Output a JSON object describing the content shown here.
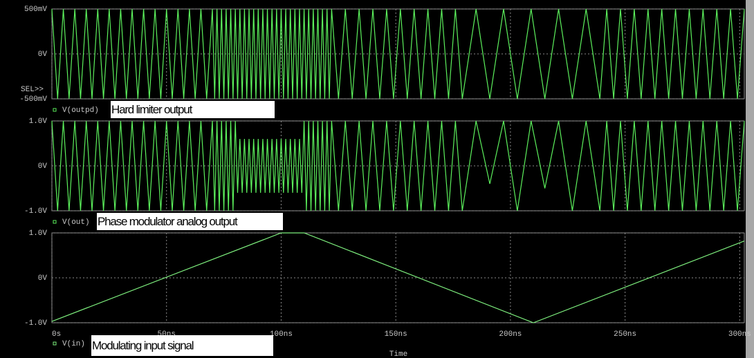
{
  "sel_label": "SEL>>",
  "chart_data": [
    {
      "type": "line",
      "annotation": "Hard limiter output",
      "xlim": [
        0,
        302
      ],
      "xticks": [
        0,
        50,
        100,
        150,
        200,
        250,
        300
      ],
      "ylim": [
        -0.5,
        0.5
      ],
      "yticks": [
        {
          "value": 0.5,
          "label": "500mV"
        },
        {
          "value": 0,
          "label": "0V"
        },
        {
          "value": -0.5,
          "label": "-500mV"
        }
      ],
      "series": [
        {
          "name": "V(outpd)",
          "color": "#5cf05c",
          "x": [
            0,
            2.5,
            5,
            7.5,
            10,
            12.5,
            15,
            17.5,
            20,
            22.5,
            25,
            27.5,
            30,
            32.5,
            35,
            37.5,
            40,
            42.5,
            45,
            47.5,
            50,
            52.5,
            55,
            57.5,
            60,
            62.5,
            65,
            67.5,
            70,
            71,
            72,
            73,
            74,
            75,
            76,
            77,
            78,
            79,
            80,
            81,
            82,
            83,
            84,
            85,
            86,
            87,
            88,
            89,
            90,
            91,
            92,
            93,
            94,
            95,
            96,
            97,
            98,
            99,
            100,
            101,
            102,
            103,
            104,
            105,
            106,
            107,
            108,
            109,
            110,
            111,
            112,
            113,
            114,
            115,
            116,
            117,
            118,
            119,
            120,
            121,
            122,
            125,
            128,
            131,
            134,
            137,
            140,
            143,
            146,
            149,
            152,
            155,
            158,
            161,
            164,
            167,
            170,
            173,
            176,
            179,
            185,
            191,
            197,
            203,
            209,
            215,
            221,
            227,
            233,
            239,
            242,
            245,
            248,
            251,
            254,
            257,
            260,
            263,
            266,
            269,
            272,
            275,
            278,
            281,
            284,
            287,
            290,
            293,
            296,
            299,
            302
          ],
          "values": [
            0.5,
            -0.5,
            0.5,
            -0.5,
            0.5,
            -0.5,
            0.5,
            -0.5,
            0.5,
            -0.5,
            0.5,
            -0.5,
            0.5,
            -0.5,
            0.5,
            -0.5,
            0.5,
            -0.5,
            0.5,
            -0.5,
            0.5,
            -0.5,
            0.5,
            -0.5,
            0.5,
            -0.5,
            0.5,
            -0.5,
            0.5,
            -0.5,
            0.5,
            -0.5,
            0.5,
            -0.5,
            0.5,
            -0.5,
            0.5,
            -0.5,
            0.5,
            -0.5,
            0.5,
            -0.5,
            0.5,
            -0.5,
            0.5,
            -0.5,
            0.5,
            -0.5,
            0.5,
            -0.5,
            0.5,
            -0.5,
            0.5,
            -0.5,
            0.5,
            -0.5,
            0.5,
            -0.5,
            0.5,
            -0.5,
            0.5,
            -0.5,
            0.5,
            -0.5,
            0.5,
            -0.5,
            0.5,
            -0.5,
            0.5,
            -0.5,
            0.5,
            -0.5,
            0.5,
            -0.5,
            0.5,
            -0.5,
            0.5,
            -0.5,
            0.5,
            -0.5,
            0.5,
            -0.5,
            0.5,
            -0.5,
            0.5,
            -0.5,
            0.5,
            -0.5,
            0.5,
            -0.5,
            0.5,
            -0.5,
            0.5,
            -0.5,
            0.5,
            -0.5,
            0.5,
            -0.5,
            0.5,
            -0.5,
            0.5,
            -0.5,
            0.5,
            -0.5,
            0.5,
            -0.5,
            0.5,
            -0.5,
            0.5,
            -0.5,
            0.5,
            -0.5,
            0.5,
            -0.5,
            0.5,
            -0.5,
            0.5,
            -0.5,
            0.5,
            -0.5,
            0.5,
            -0.5,
            0.5,
            -0.5,
            0.5,
            -0.5,
            0.5,
            -0.5,
            0.5,
            -0.5,
            0.5
          ]
        }
      ]
    },
    {
      "type": "line",
      "annotation": "Phase modulator analog output",
      "xlim": [
        0,
        302
      ],
      "xticks": [
        0,
        50,
        100,
        150,
        200,
        250,
        300
      ],
      "ylim": [
        -1,
        1
      ],
      "yticks": [
        {
          "value": 1,
          "label": "1.0V"
        },
        {
          "value": 0,
          "label": "0V"
        },
        {
          "value": -1,
          "label": "-1.0V"
        }
      ],
      "series": [
        {
          "name": "V(out)",
          "color": "#5cf05c",
          "x": [
            0,
            2.5,
            5,
            7.5,
            10,
            12.5,
            15,
            17.5,
            20,
            22.5,
            25,
            27.5,
            30,
            32.5,
            35,
            37.5,
            40,
            42.5,
            45,
            47.5,
            50,
            52.5,
            55,
            57.5,
            60,
            62.5,
            65,
            67.5,
            70,
            71,
            72,
            73,
            74,
            75,
            76,
            77,
            78,
            79,
            80,
            81,
            82,
            83,
            84,
            85,
            86,
            87,
            88,
            89,
            90,
            91,
            92,
            93,
            94,
            95,
            96,
            97,
            98,
            99,
            100,
            101,
            102,
            103,
            104,
            105,
            106,
            107,
            108,
            109,
            110,
            111,
            112,
            113,
            114,
            115,
            116,
            117,
            118,
            119,
            120,
            121,
            122,
            125,
            128,
            131,
            134,
            137,
            140,
            143,
            146,
            149,
            152,
            155,
            158,
            161,
            164,
            167,
            170,
            173,
            176,
            179,
            185,
            191,
            197,
            203,
            209,
            215,
            221,
            227,
            233,
            239,
            242,
            245,
            248,
            251,
            254,
            257,
            260,
            263,
            266,
            269,
            272,
            275,
            278,
            281,
            284,
            287,
            290,
            293,
            296,
            299,
            302
          ],
          "values": [
            1,
            -1,
            1,
            -1,
            1,
            -1,
            1,
            -1,
            1,
            -1,
            1,
            -1,
            1,
            -1,
            1,
            -1,
            1,
            -1,
            1,
            -1,
            1,
            -1,
            1,
            -1,
            1,
            -1,
            1,
            -1,
            1,
            -1,
            1,
            -1,
            1,
            -1,
            1,
            -1,
            1,
            -1,
            1,
            -0.6,
            0.6,
            -0.6,
            0.6,
            -0.6,
            0.6,
            -0.6,
            0.6,
            -0.6,
            0.6,
            -0.6,
            0.6,
            -0.6,
            0.6,
            -0.6,
            0.6,
            -0.6,
            0.6,
            -0.6,
            0.6,
            -0.6,
            0.6,
            -0.6,
            0.6,
            -0.6,
            0.6,
            -0.6,
            0.6,
            -0.6,
            1,
            -1,
            1,
            -1,
            1,
            -1,
            1,
            -1,
            1,
            -1,
            1,
            -1,
            1,
            -1,
            1,
            -1,
            1,
            -1,
            1,
            -1,
            1,
            -1,
            1,
            -1,
            1,
            -1,
            1,
            -1,
            1,
            -1,
            1,
            -1,
            1,
            -0.4,
            1,
            -1,
            1,
            -0.5,
            1,
            -1,
            1,
            -1,
            1,
            -1,
            1,
            -1,
            1,
            -1,
            1,
            -1,
            1,
            -1,
            1,
            -1,
            1,
            -1,
            1,
            -1,
            1,
            -1,
            1,
            -1,
            1
          ]
        }
      ]
    },
    {
      "type": "line",
      "annotation": "Modulating input signal",
      "xlabel": "Time",
      "xlim": [
        0,
        302
      ],
      "xticks": [
        {
          "value": 0,
          "label": "0s"
        },
        {
          "value": 50,
          "label": "50ns"
        },
        {
          "value": 100,
          "label": "100ns"
        },
        {
          "value": 150,
          "label": "150ns"
        },
        {
          "value": 200,
          "label": "200ns"
        },
        {
          "value": 250,
          "label": "250ns"
        },
        {
          "value": 300,
          "label": "300ns"
        }
      ],
      "ylim": [
        -1,
        1
      ],
      "yticks": [
        {
          "value": 1,
          "label": "1.0V"
        },
        {
          "value": 0,
          "label": "0V"
        },
        {
          "value": -1,
          "label": "-1.0V"
        }
      ],
      "series": [
        {
          "name": "V(in)",
          "color": "#7ef07e",
          "x": [
            0,
            100,
            110,
            210,
            302
          ],
          "values": [
            -0.97,
            1,
            1,
            -1,
            0.82
          ]
        }
      ]
    }
  ]
}
